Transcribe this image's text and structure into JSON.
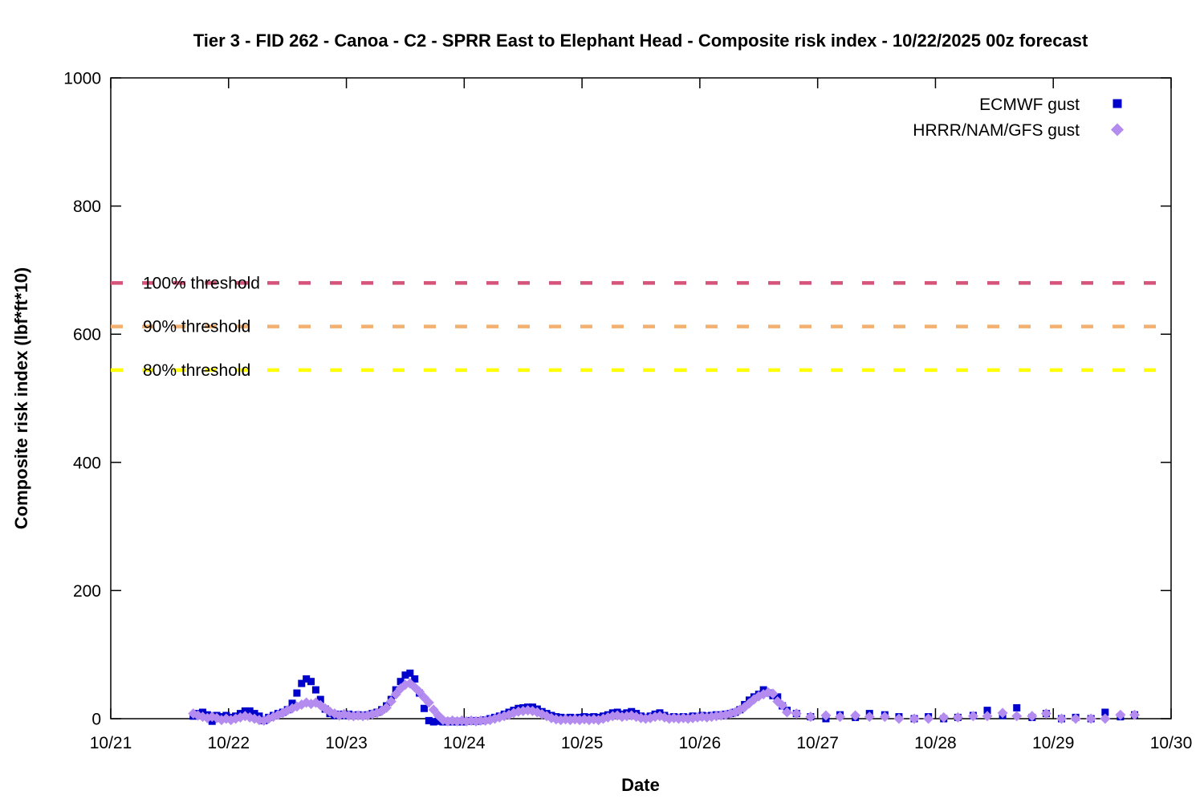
{
  "chart_data": {
    "type": "scatter",
    "title": "Tier 3 - FID 262 - Canoa - C2 - SPRR East to Elephant Head - Composite risk index - 10/22/2025 00z forecast",
    "xlabel": "Date",
    "ylabel": "Composite risk index (lbf*ft*10)",
    "x_unit": "October date (day of month, fractional = time of day)",
    "xlim": [
      21,
      30
    ],
    "ylim": [
      0,
      1000
    ],
    "grid": false,
    "legend_position": "top-right",
    "x_ticks": [
      {
        "value": 21,
        "label": "10/21"
      },
      {
        "value": 22,
        "label": "10/22"
      },
      {
        "value": 23,
        "label": "10/23"
      },
      {
        "value": 24,
        "label": "10/24"
      },
      {
        "value": 25,
        "label": "10/25"
      },
      {
        "value": 26,
        "label": "10/26"
      },
      {
        "value": 27,
        "label": "10/27"
      },
      {
        "value": 28,
        "label": "10/28"
      },
      {
        "value": 29,
        "label": "10/29"
      },
      {
        "value": 30,
        "label": "10/30"
      }
    ],
    "y_ticks": [
      {
        "value": 0,
        "label": "0"
      },
      {
        "value": 200,
        "label": "200"
      },
      {
        "value": 400,
        "label": "400"
      },
      {
        "value": 600,
        "label": "600"
      },
      {
        "value": 800,
        "label": "800"
      },
      {
        "value": 1000,
        "label": "1000"
      }
    ],
    "thresholds": [
      {
        "label": "100% threshold",
        "value": 680,
        "color": "#d6537a"
      },
      {
        "label": "90% threshold",
        "value": 612,
        "color": "#f2b170"
      },
      {
        "label": "80% threshold",
        "value": 544,
        "color": "#ffff00"
      }
    ],
    "series": [
      {
        "name": "ECMWF gust",
        "marker": "square",
        "color": "#0000cd",
        "points": [
          [
            21.7,
            4
          ],
          [
            21.74,
            8
          ],
          [
            21.78,
            10
          ],
          [
            21.82,
            6
          ],
          [
            21.86,
            -4
          ],
          [
            21.9,
            5
          ],
          [
            21.94,
            3
          ],
          [
            21.98,
            5
          ],
          [
            22.02,
            2
          ],
          [
            22.06,
            4
          ],
          [
            22.1,
            8
          ],
          [
            22.14,
            12
          ],
          [
            22.18,
            12
          ],
          [
            22.22,
            8
          ],
          [
            22.26,
            4
          ],
          [
            22.3,
            -3
          ],
          [
            22.34,
            2
          ],
          [
            22.38,
            5
          ],
          [
            22.42,
            8
          ],
          [
            22.46,
            10
          ],
          [
            22.5,
            14
          ],
          [
            22.54,
            24
          ],
          [
            22.58,
            40
          ],
          [
            22.62,
            55
          ],
          [
            22.66,
            62
          ],
          [
            22.7,
            58
          ],
          [
            22.74,
            45
          ],
          [
            22.78,
            30
          ],
          [
            22.82,
            15
          ],
          [
            22.86,
            8
          ],
          [
            22.9,
            5
          ],
          [
            22.94,
            7
          ],
          [
            22.98,
            5
          ],
          [
            23.02,
            7
          ],
          [
            23.06,
            5
          ],
          [
            23.1,
            6
          ],
          [
            23.14,
            5
          ],
          [
            23.18,
            6
          ],
          [
            23.22,
            8
          ],
          [
            23.26,
            10
          ],
          [
            23.3,
            14
          ],
          [
            23.34,
            20
          ],
          [
            23.38,
            30
          ],
          [
            23.42,
            45
          ],
          [
            23.46,
            58
          ],
          [
            23.5,
            68
          ],
          [
            23.54,
            71
          ],
          [
            23.58,
            62
          ],
          [
            23.62,
            40
          ],
          [
            23.66,
            16
          ],
          [
            23.7,
            -3
          ],
          [
            23.74,
            -5
          ],
          [
            23.78,
            -4
          ],
          [
            23.82,
            -5
          ],
          [
            23.86,
            -4
          ],
          [
            23.9,
            -5
          ],
          [
            23.94,
            -4
          ],
          [
            23.98,
            -5
          ],
          [
            24.02,
            -4
          ],
          [
            24.06,
            -3
          ],
          [
            24.1,
            -4
          ],
          [
            24.14,
            -3
          ],
          [
            24.18,
            -2
          ],
          [
            24.22,
            0
          ],
          [
            24.26,
            2
          ],
          [
            24.3,
            4
          ],
          [
            24.34,
            7
          ],
          [
            24.38,
            10
          ],
          [
            24.42,
            13
          ],
          [
            24.46,
            16
          ],
          [
            24.5,
            17
          ],
          [
            24.54,
            18
          ],
          [
            24.58,
            18
          ],
          [
            24.62,
            15
          ],
          [
            24.66,
            11
          ],
          [
            24.7,
            8
          ],
          [
            24.74,
            5
          ],
          [
            24.78,
            3
          ],
          [
            24.82,
            2
          ],
          [
            24.86,
            1
          ],
          [
            24.9,
            2
          ],
          [
            24.94,
            1
          ],
          [
            24.98,
            2
          ],
          [
            25.02,
            3
          ],
          [
            25.06,
            2
          ],
          [
            25.1,
            3
          ],
          [
            25.14,
            2
          ],
          [
            25.18,
            4
          ],
          [
            25.22,
            6
          ],
          [
            25.26,
            9
          ],
          [
            25.3,
            10
          ],
          [
            25.34,
            7
          ],
          [
            25.38,
            9
          ],
          [
            25.42,
            11
          ],
          [
            25.46,
            8
          ],
          [
            25.5,
            4
          ],
          [
            25.54,
            2
          ],
          [
            25.58,
            4
          ],
          [
            25.62,
            7
          ],
          [
            25.66,
            9
          ],
          [
            25.7,
            5
          ],
          [
            25.74,
            2
          ],
          [
            25.78,
            3
          ],
          [
            25.82,
            2
          ],
          [
            25.86,
            3
          ],
          [
            25.9,
            2
          ],
          [
            25.94,
            4
          ],
          [
            25.98,
            3
          ],
          [
            26.02,
            5
          ],
          [
            26.06,
            4
          ],
          [
            26.1,
            5
          ],
          [
            26.14,
            6
          ],
          [
            26.18,
            5
          ],
          [
            26.22,
            7
          ],
          [
            26.26,
            8
          ],
          [
            26.3,
            10
          ],
          [
            26.34,
            14
          ],
          [
            26.38,
            22
          ],
          [
            26.42,
            29
          ],
          [
            26.46,
            34
          ],
          [
            26.5,
            38
          ],
          [
            26.54,
            45
          ],
          [
            26.58,
            40
          ],
          [
            26.62,
            36
          ],
          [
            26.66,
            34
          ],
          [
            26.7,
            20
          ],
          [
            26.74,
            13
          ],
          [
            26.82,
            8
          ],
          [
            26.94,
            3
          ],
          [
            27.07,
            0
          ],
          [
            27.19,
            6
          ],
          [
            27.32,
            2
          ],
          [
            27.44,
            8
          ],
          [
            27.57,
            6
          ],
          [
            27.69,
            3
          ],
          [
            27.82,
            0
          ],
          [
            27.94,
            3
          ],
          [
            28.07,
            0
          ],
          [
            28.19,
            2
          ],
          [
            28.32,
            5
          ],
          [
            28.44,
            13
          ],
          [
            28.57,
            5
          ],
          [
            28.69,
            17
          ],
          [
            28.82,
            2
          ],
          [
            28.94,
            8
          ],
          [
            29.07,
            0
          ],
          [
            29.19,
            2
          ],
          [
            29.32,
            0
          ],
          [
            29.44,
            10
          ],
          [
            29.57,
            3
          ],
          [
            29.69,
            6
          ]
        ]
      },
      {
        "name": "HRRR/NAM/GFS gust",
        "marker": "diamond",
        "color": "#b48cf0",
        "points": [
          [
            21.7,
            8
          ],
          [
            21.74,
            5
          ],
          [
            21.78,
            3
          ],
          [
            21.82,
            1
          ],
          [
            21.86,
            3
          ],
          [
            21.9,
            1
          ],
          [
            21.94,
            -2
          ],
          [
            21.98,
            0
          ],
          [
            22.02,
            -2
          ],
          [
            22.06,
            0
          ],
          [
            22.1,
            2
          ],
          [
            22.14,
            4
          ],
          [
            22.18,
            2
          ],
          [
            22.22,
            0
          ],
          [
            22.26,
            -2
          ],
          [
            22.3,
            -3
          ],
          [
            22.34,
            0
          ],
          [
            22.38,
            3
          ],
          [
            22.42,
            6
          ],
          [
            22.46,
            9
          ],
          [
            22.5,
            13
          ],
          [
            22.54,
            16
          ],
          [
            22.58,
            19
          ],
          [
            22.62,
            22
          ],
          [
            22.66,
            25
          ],
          [
            22.7,
            23
          ],
          [
            22.74,
            25
          ],
          [
            22.78,
            21
          ],
          [
            22.82,
            16
          ],
          [
            22.86,
            11
          ],
          [
            22.9,
            8
          ],
          [
            22.94,
            5
          ],
          [
            22.98,
            7
          ],
          [
            23.02,
            5
          ],
          [
            23.06,
            4
          ],
          [
            23.1,
            5
          ],
          [
            23.14,
            4
          ],
          [
            23.18,
            5
          ],
          [
            23.22,
            7
          ],
          [
            23.26,
            9
          ],
          [
            23.3,
            12
          ],
          [
            23.34,
            17
          ],
          [
            23.38,
            27
          ],
          [
            23.42,
            38
          ],
          [
            23.46,
            47
          ],
          [
            23.5,
            53
          ],
          [
            23.54,
            55
          ],
          [
            23.58,
            49
          ],
          [
            23.62,
            42
          ],
          [
            23.66,
            33
          ],
          [
            23.7,
            25
          ],
          [
            23.74,
            14
          ],
          [
            23.78,
            5
          ],
          [
            23.82,
            -2
          ],
          [
            23.86,
            -4
          ],
          [
            23.9,
            -3
          ],
          [
            23.94,
            -4
          ],
          [
            23.98,
            -3
          ],
          [
            24.02,
            -4
          ],
          [
            24.06,
            -3
          ],
          [
            24.1,
            -4
          ],
          [
            24.14,
            -3
          ],
          [
            24.18,
            -3
          ],
          [
            24.22,
            -2
          ],
          [
            24.26,
            0
          ],
          [
            24.3,
            2
          ],
          [
            24.34,
            4
          ],
          [
            24.38,
            6
          ],
          [
            24.42,
            9
          ],
          [
            24.46,
            11
          ],
          [
            24.5,
            12
          ],
          [
            24.54,
            13
          ],
          [
            24.58,
            12
          ],
          [
            24.62,
            10
          ],
          [
            24.66,
            7
          ],
          [
            24.7,
            4
          ],
          [
            24.74,
            1
          ],
          [
            24.78,
            -1
          ],
          [
            24.82,
            -2
          ],
          [
            24.86,
            -1
          ],
          [
            24.9,
            -2
          ],
          [
            24.94,
            -1
          ],
          [
            24.98,
            -2
          ],
          [
            25.02,
            -1
          ],
          [
            25.06,
            -2
          ],
          [
            25.1,
            -1
          ],
          [
            25.14,
            -2
          ],
          [
            25.18,
            0
          ],
          [
            25.22,
            2
          ],
          [
            25.26,
            4
          ],
          [
            25.3,
            5
          ],
          [
            25.34,
            3
          ],
          [
            25.38,
            4
          ],
          [
            25.42,
            5
          ],
          [
            25.46,
            3
          ],
          [
            25.5,
            1
          ],
          [
            25.54,
            0
          ],
          [
            25.58,
            1
          ],
          [
            25.62,
            3
          ],
          [
            25.66,
            4
          ],
          [
            25.7,
            2
          ],
          [
            25.74,
            0
          ],
          [
            25.78,
            1
          ],
          [
            25.82,
            0
          ],
          [
            25.86,
            1
          ],
          [
            25.9,
            0
          ],
          [
            25.94,
            1
          ],
          [
            25.98,
            2
          ],
          [
            26.02,
            3
          ],
          [
            26.06,
            2
          ],
          [
            26.1,
            3
          ],
          [
            26.14,
            4
          ],
          [
            26.18,
            5
          ],
          [
            26.22,
            6
          ],
          [
            26.26,
            8
          ],
          [
            26.3,
            10
          ],
          [
            26.34,
            14
          ],
          [
            26.38,
            18
          ],
          [
            26.42,
            24
          ],
          [
            26.46,
            30
          ],
          [
            26.5,
            35
          ],
          [
            26.54,
            38
          ],
          [
            26.58,
            41
          ],
          [
            26.62,
            39
          ],
          [
            26.66,
            27
          ],
          [
            26.7,
            21
          ],
          [
            26.74,
            10
          ],
          [
            26.82,
            8
          ],
          [
            26.94,
            3
          ],
          [
            27.07,
            5
          ],
          [
            27.19,
            3
          ],
          [
            27.32,
            5
          ],
          [
            27.44,
            3
          ],
          [
            27.57,
            3
          ],
          [
            27.69,
            0
          ],
          [
            27.82,
            0
          ],
          [
            27.94,
            0
          ],
          [
            28.07,
            2
          ],
          [
            28.19,
            2
          ],
          [
            28.32,
            4
          ],
          [
            28.44,
            4
          ],
          [
            28.57,
            9
          ],
          [
            28.69,
            4
          ],
          [
            28.82,
            4
          ],
          [
            28.94,
            8
          ],
          [
            29.07,
            0
          ],
          [
            29.19,
            0
          ],
          [
            29.32,
            0
          ],
          [
            29.44,
            0
          ],
          [
            29.57,
            6
          ],
          [
            29.69,
            6
          ]
        ]
      }
    ]
  }
}
